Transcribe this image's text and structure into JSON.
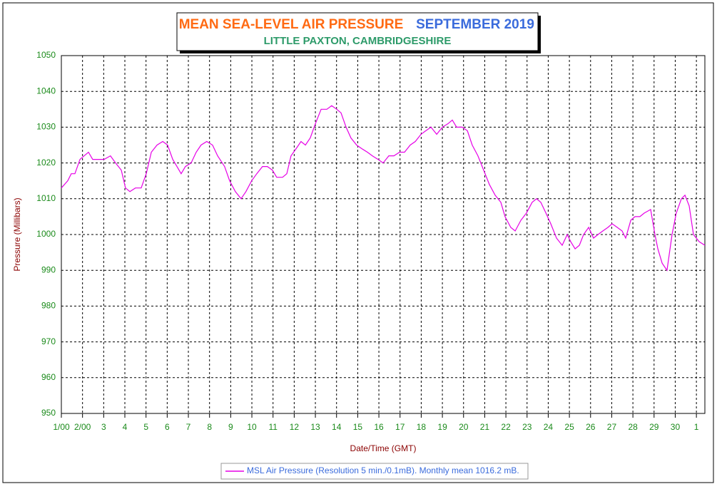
{
  "chart_data": {
    "type": "line",
    "title": "MEAN SEA-LEVEL AIR PRESSURE",
    "title_period": "SEPTEMBER 2019",
    "subtitle": "LITTLE PAXTON, CAMBRIDGESHIRE",
    "x_label": "Date/Time (GMT)",
    "y_label": "Pressure (Millibars)",
    "xlim": [
      1,
      31.4
    ],
    "ylim": [
      950,
      1050
    ],
    "xticks": [
      {
        "value": 1,
        "label": "1/00"
      },
      {
        "value": 2,
        "label": "2/00"
      },
      3,
      4,
      5,
      6,
      7,
      8,
      9,
      10,
      11,
      12,
      13,
      14,
      15,
      16,
      17,
      18,
      19,
      20,
      21,
      22,
      23,
      24,
      25,
      26,
      27,
      28,
      29,
      30,
      {
        "value": 31,
        "label": "1"
      }
    ],
    "yticks": [
      950,
      960,
      970,
      980,
      990,
      1000,
      1010,
      1020,
      1030,
      1040,
      1050
    ],
    "grid": true,
    "legend": "bottom",
    "series": [
      {
        "name": "MSL Air Pressure (Resolution 5 min./0.1mB). Monthly mean 1016.2 mB.",
        "color": "#e600e6",
        "x": [
          1.0,
          1.3,
          1.47,
          1.64,
          1.88,
          2.08,
          2.28,
          2.48,
          2.75,
          3.02,
          3.32,
          3.56,
          3.83,
          4.03,
          4.24,
          4.5,
          4.77,
          5.01,
          5.25,
          5.52,
          5.79,
          6.02,
          6.26,
          6.46,
          6.66,
          6.86,
          7.13,
          7.37,
          7.6,
          7.87,
          8.14,
          8.38,
          8.71,
          8.95,
          9.22,
          9.49,
          9.72,
          9.99,
          10.23,
          10.5,
          10.73,
          10.97,
          11.17,
          11.45,
          11.65,
          11.85,
          12.09,
          12.32,
          12.53,
          12.76,
          13.0,
          13.27,
          13.54,
          13.77,
          14.01,
          14.21,
          14.45,
          14.68,
          14.95,
          15.19,
          15.46,
          15.69,
          15.96,
          16.2,
          16.47,
          16.71,
          16.98,
          17.21,
          17.48,
          17.72,
          17.99,
          18.22,
          18.46,
          18.73,
          19.0,
          19.27,
          19.47,
          19.67,
          19.94,
          20.18,
          20.41,
          20.68,
          20.95,
          21.22,
          21.49,
          21.76,
          21.96,
          22.23,
          22.44,
          22.71,
          22.97,
          23.24,
          23.45,
          23.65,
          23.89,
          24.12,
          24.39,
          24.66,
          24.9,
          25.06,
          25.27,
          25.47,
          25.67,
          25.91,
          26.14,
          26.35,
          26.58,
          26.82,
          27.02,
          27.26,
          27.49,
          27.66,
          27.9,
          28.1,
          28.33,
          28.54,
          28.84,
          29.04,
          29.18,
          29.38,
          29.61,
          29.85,
          30.05,
          30.29,
          30.46,
          30.66,
          30.86,
          31.13,
          31.4
        ],
        "values": [
          1013,
          1015,
          1017,
          1017,
          1021,
          1022,
          1023,
          1021,
          1021,
          1021,
          1022,
          1020,
          1018,
          1013,
          1012,
          1013,
          1013,
          1017,
          1023,
          1025,
          1026,
          1025,
          1021,
          1019,
          1017,
          1019,
          1020,
          1023,
          1025,
          1026,
          1025,
          1022,
          1019,
          1015,
          1012,
          1010,
          1012,
          1015,
          1017,
          1019,
          1019,
          1018,
          1016,
          1016,
          1017,
          1022,
          1024,
          1026,
          1025,
          1027,
          1031,
          1035,
          1035,
          1036,
          1035,
          1034,
          1030,
          1027,
          1025,
          1024,
          1023,
          1022,
          1021,
          1020,
          1022,
          1022,
          1023,
          1023,
          1025,
          1026,
          1028,
          1029,
          1030,
          1028,
          1030,
          1031,
          1032,
          1030,
          1030,
          1029,
          1025,
          1022,
          1018,
          1014,
          1011,
          1009,
          1005,
          1002,
          1001,
          1004,
          1006,
          1009,
          1010,
          1009,
          1006,
          1003,
          999,
          997,
          1000,
          998,
          996,
          997,
          1000,
          1002,
          999,
          1000,
          1001,
          1002,
          1003,
          1002,
          1001,
          999,
          1004,
          1005,
          1005,
          1006,
          1007,
          1000,
          996,
          992,
          990,
          1000,
          1006,
          1010,
          1011,
          1008,
          1000,
          998,
          997
        ]
      }
    ]
  }
}
